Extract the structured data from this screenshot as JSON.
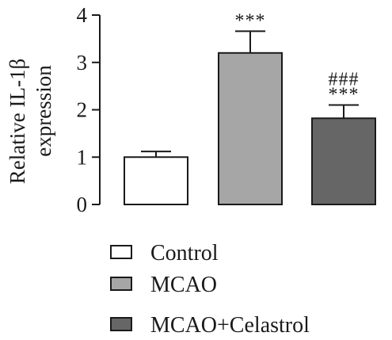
{
  "chart_data": {
    "type": "bar",
    "categories": [
      "Control",
      "MCAO",
      "MCAO+Celastrol"
    ],
    "values": [
      1.0,
      3.2,
      1.82
    ],
    "errors": [
      0.12,
      0.46,
      0.28
    ],
    "colors": [
      "#ffffff",
      "#a6a6a6",
      "#666666"
    ],
    "annotations": [
      [],
      [
        "***"
      ],
      [
        "###",
        "***"
      ]
    ],
    "ylabel_lines": [
      "Relative IL-1β",
      "expression"
    ],
    "yticks": [
      "0",
      "1",
      "2",
      "3",
      "4"
    ],
    "ylim": [
      0,
      4
    ],
    "legend": {
      "placement": "bottom",
      "entries": [
        "Control",
        "MCAO",
        "MCAO+Celastrol"
      ]
    }
  }
}
